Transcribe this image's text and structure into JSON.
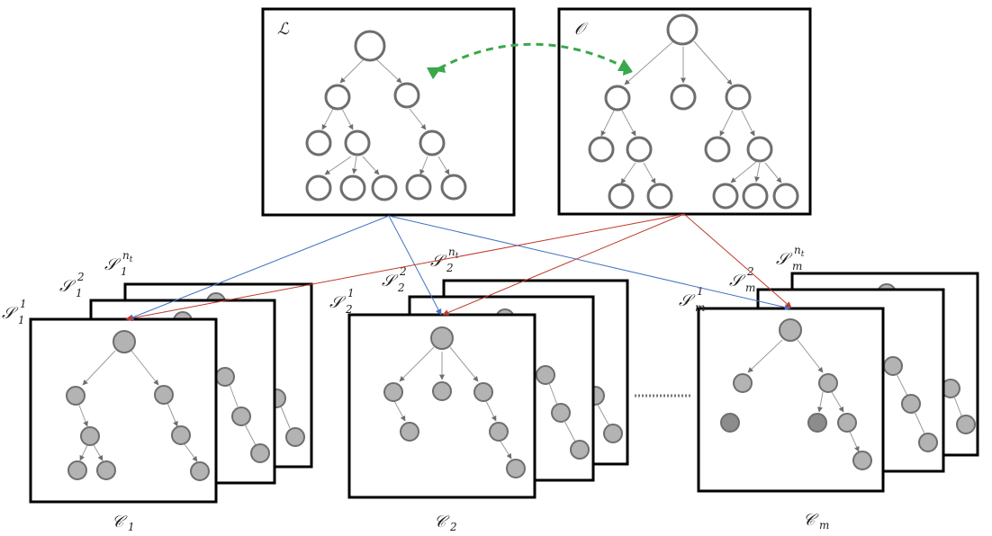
{
  "top_trees": [
    {
      "label": "ℒ"
    },
    {
      "label": "𝒪"
    }
  ],
  "clusters": [
    {
      "label_main": "𝒞",
      "label_sub": "1",
      "stack_labels": [
        {
          "main": "𝒮",
          "sub": "1",
          "sup": "1"
        },
        {
          "main": "𝒮",
          "sub": "1",
          "sup": "2"
        },
        {
          "main": "𝒮",
          "sub": "1",
          "sup": "nt"
        }
      ]
    },
    {
      "label_main": "𝒞",
      "label_sub": "2",
      "stack_labels": [
        {
          "main": "𝒮",
          "sub": "2",
          "sup": "1"
        },
        {
          "main": "𝒮",
          "sub": "2",
          "sup": "2"
        },
        {
          "main": "𝒮",
          "sub": "2",
          "sup": "nt"
        }
      ]
    },
    {
      "label_main": "𝒞",
      "label_sub": "m",
      "stack_labels": [
        {
          "main": "𝒮",
          "sub": "m",
          "sup": "1"
        },
        {
          "main": "𝒮",
          "sub": "m",
          "sup": "2"
        },
        {
          "main": "𝒮",
          "sub": "m",
          "sup": "nt"
        }
      ]
    }
  ],
  "colors": {
    "box_border": "#000000",
    "open_node": "#6e6e6e",
    "filled_node": "#b3b3b3",
    "edge": "#9a9a9a",
    "blue_link": "#4472c4",
    "red_link": "#c0392b",
    "green_link": "#3aa84a"
  }
}
